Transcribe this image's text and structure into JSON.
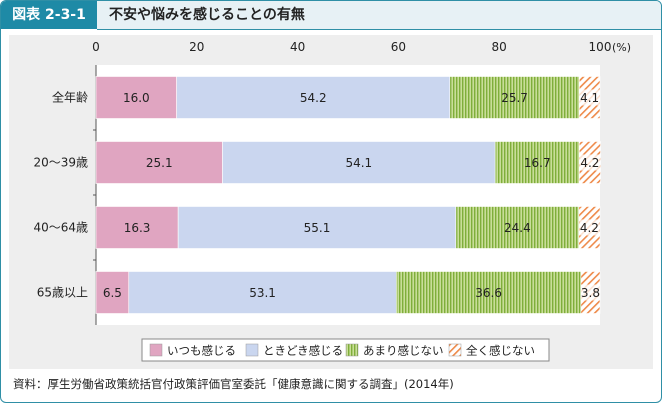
{
  "header": {
    "tag": "図表 2-3-1",
    "title": "不安や悩みを感じることの有無"
  },
  "colors": {
    "accent": "#1e8aa6",
    "いつも感じる": "#e0a5c1",
    "ときどき感じる": "#cad6ef",
    "あまり感じない": "#a7c96a",
    "全く感じない": "#f2a16e"
  },
  "chart_data": {
    "type": "bar",
    "orientation": "horizontal",
    "stacked": true,
    "categories": [
      "全年齢",
      "20～39歳",
      "40～64歳",
      "65歳以上"
    ],
    "xlim": [
      0,
      100
    ],
    "x_ticks": [
      0,
      20,
      40,
      60,
      80,
      100
    ],
    "x_unit": "(%)",
    "legend_position": "bottom",
    "series": [
      {
        "name": "いつも感じる",
        "values": [
          16.0,
          25.1,
          16.3,
          6.5
        ]
      },
      {
        "name": "ときどき感じる",
        "values": [
          54.2,
          54.1,
          55.1,
          53.1
        ]
      },
      {
        "name": "あまり感じない",
        "values": [
          25.7,
          16.7,
          24.4,
          36.6
        ]
      },
      {
        "name": "全く感じない",
        "values": [
          4.1,
          4.2,
          4.2,
          3.8
        ]
      }
    ]
  },
  "source": "資料：厚生労働省政策統括官付政策評価官室委託「健康意識に関する調査」(2014年)"
}
